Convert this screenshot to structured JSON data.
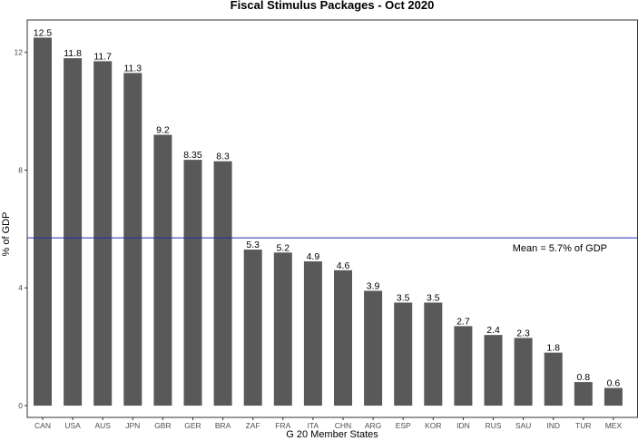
{
  "chart_data": {
    "type": "bar",
    "title": "Fiscal Stimulus Packages - Oct 2020",
    "xlabel": "G 20 Member States",
    "ylabel": "% of GDP",
    "categories": [
      "CAN",
      "USA",
      "AUS",
      "JPN",
      "GBR",
      "GER",
      "BRA",
      "ZAF",
      "FRA",
      "ITA",
      "CHN",
      "ARG",
      "ESP",
      "KOR",
      "IDN",
      "RUS",
      "SAU",
      "IND",
      "TUR",
      "MEX"
    ],
    "values": [
      12.5,
      11.8,
      11.7,
      11.3,
      9.2,
      8.35,
      8.3,
      5.3,
      5.2,
      4.9,
      4.6,
      3.9,
      3.5,
      3.5,
      2.7,
      2.4,
      2.3,
      1.8,
      0.8,
      0.6
    ],
    "data_labels": [
      "12.5",
      "11.8",
      "11.7",
      "11.3",
      "9.2",
      "8.35",
      "8.3",
      "5.3",
      "5.2",
      "4.9",
      "4.6",
      "3.9",
      "3.5",
      "3.5",
      "2.7",
      "2.4",
      "2.3",
      "1.8",
      "0.8",
      "0.6"
    ],
    "yticks": [
      0,
      4,
      8,
      12
    ],
    "ylim": [
      -0.4,
      13.1
    ],
    "grid": false,
    "reference_line": {
      "value": 5.7,
      "label": "Mean = 5.7% of GDP",
      "color": "#1f2fb4"
    },
    "bar_color": "#595959"
  }
}
